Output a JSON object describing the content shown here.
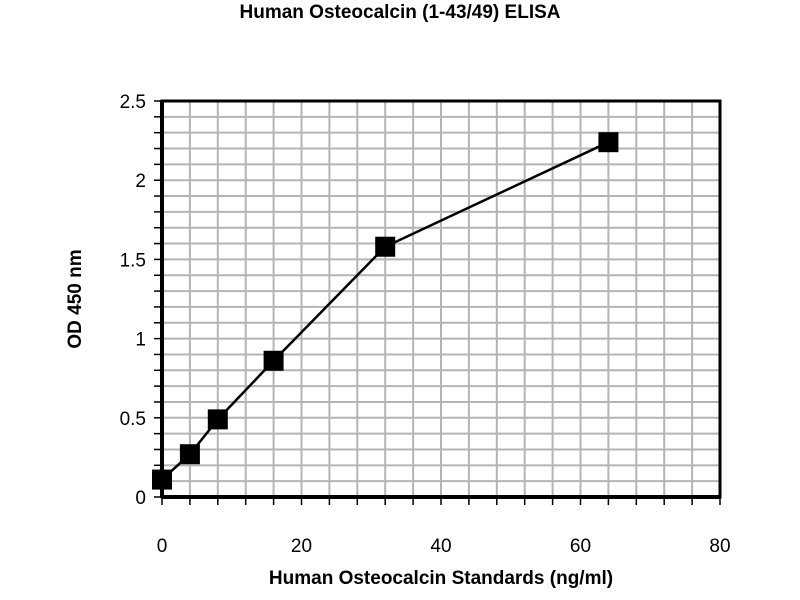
{
  "chart_data": {
    "type": "line",
    "title": "Human Osteocalcin (1-43/49) ELISA",
    "xlabel": "Human Osteocalcin Standards (ng/ml)",
    "ylabel": "OD 450 nm",
    "xlim": [
      0,
      80
    ],
    "ylim": [
      0,
      2.5
    ],
    "x_ticks": [
      0,
      20,
      40,
      60,
      80
    ],
    "y_ticks": [
      0,
      0.5,
      1,
      1.5,
      2,
      2.5
    ],
    "x_tick_labels": [
      "0",
      "20",
      "40",
      "60",
      "80"
    ],
    "y_tick_labels": [
      "0",
      "0.5",
      "1",
      "1.5",
      "2",
      "2.5"
    ],
    "x_grid_step": 4,
    "y_grid_step": 0.1,
    "grid": true,
    "marker": "square",
    "series": [
      {
        "x": [
          0,
          4,
          8,
          16,
          32,
          64
        ],
        "values": [
          0.11,
          0.27,
          0.49,
          0.86,
          1.58,
          2.24
        ],
        "color": "#000000"
      }
    ],
    "grid_color": "#b4b4b4"
  }
}
